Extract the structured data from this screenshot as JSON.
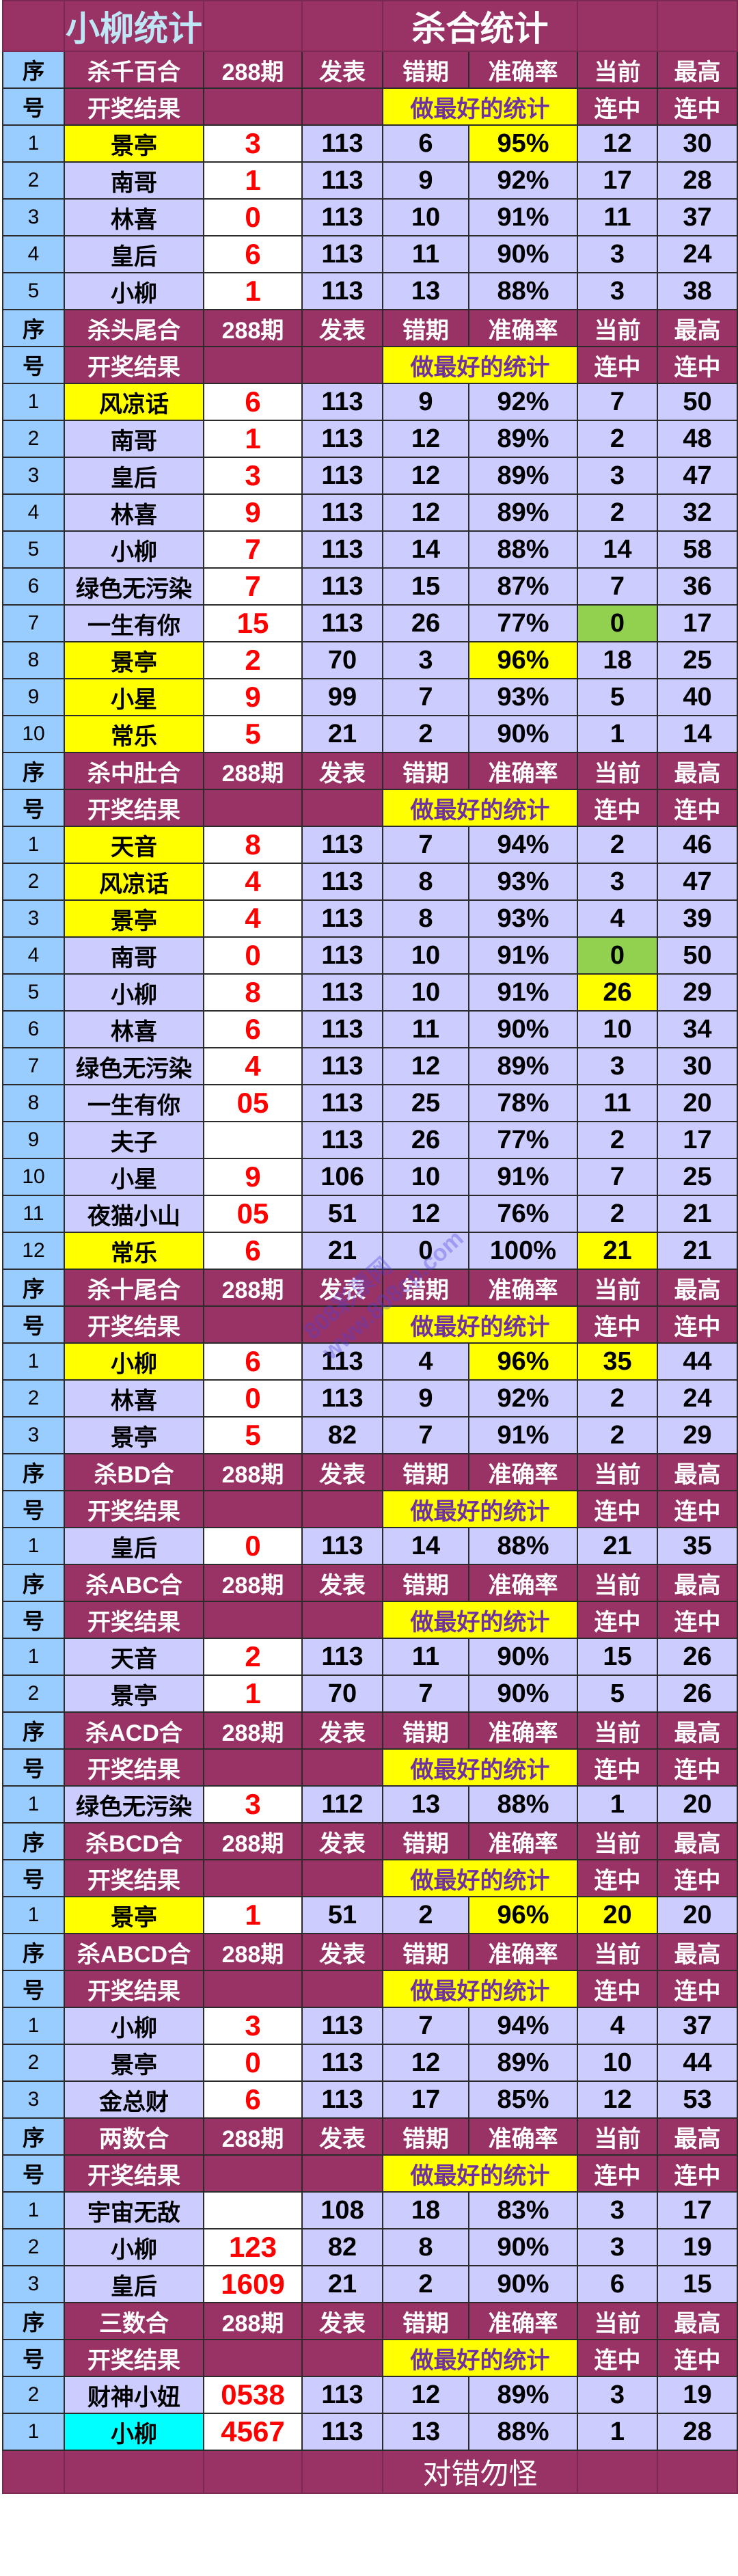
{
  "title": {
    "left": "小柳统计",
    "right": "杀合统计"
  },
  "headers": {
    "seq_top": "序",
    "seq_bottom": "号",
    "period": "288期",
    "published": "发表",
    "miss": "错期",
    "accuracy": "准确率",
    "current": "当前",
    "max": "最高",
    "result": "开奖结果",
    "best": "做最好的统计",
    "streak": "连中"
  },
  "colors": {
    "header": "#993366",
    "seq": "#99CCFF",
    "cell": "#CCCCFF",
    "highlight_yellow": "#FFFF00",
    "highlight_green": "#92D050",
    "highlight_cyan": "#00FFFF",
    "kill_text": "#FF0000",
    "best_text": "#7030A0"
  },
  "sections": [
    {
      "title": "杀千百合",
      "rows": [
        {
          "seq": "1",
          "name": "景亭",
          "kill": "3",
          "published": "113",
          "miss": "6",
          "accuracy": "95%",
          "current": "12",
          "max": "30",
          "name_hl": "yellow",
          "acc_hl": "yellow"
        },
        {
          "seq": "2",
          "name": "南哥",
          "kill": "1",
          "published": "113",
          "miss": "9",
          "accuracy": "92%",
          "current": "17",
          "max": "28"
        },
        {
          "seq": "3",
          "name": "林喜",
          "kill": "0",
          "published": "113",
          "miss": "10",
          "accuracy": "91%",
          "current": "11",
          "max": "37"
        },
        {
          "seq": "4",
          "name": "皇后",
          "kill": "6",
          "published": "113",
          "miss": "11",
          "accuracy": "90%",
          "current": "3",
          "max": "24"
        },
        {
          "seq": "5",
          "name": "小柳",
          "kill": "1",
          "published": "113",
          "miss": "13",
          "accuracy": "88%",
          "current": "3",
          "max": "38"
        }
      ]
    },
    {
      "title": "杀头尾合",
      "rows": [
        {
          "seq": "1",
          "name": "风凉话",
          "kill": "6",
          "published": "113",
          "miss": "9",
          "accuracy": "92%",
          "current": "7",
          "max": "50",
          "name_hl": "yellow"
        },
        {
          "seq": "2",
          "name": "南哥",
          "kill": "1",
          "published": "113",
          "miss": "12",
          "accuracy": "89%",
          "current": "2",
          "max": "48"
        },
        {
          "seq": "3",
          "name": "皇后",
          "kill": "3",
          "published": "113",
          "miss": "12",
          "accuracy": "89%",
          "current": "3",
          "max": "47"
        },
        {
          "seq": "4",
          "name": "林喜",
          "kill": "9",
          "published": "113",
          "miss": "12",
          "accuracy": "89%",
          "current": "2",
          "max": "32"
        },
        {
          "seq": "5",
          "name": "小柳",
          "kill": "7",
          "published": "113",
          "miss": "14",
          "accuracy": "88%",
          "current": "14",
          "max": "58"
        },
        {
          "seq": "6",
          "name": "绿色无污染",
          "kill": "7",
          "published": "113",
          "miss": "15",
          "accuracy": "87%",
          "current": "7",
          "max": "36"
        },
        {
          "seq": "7",
          "name": "一生有你",
          "kill": "15",
          "published": "113",
          "miss": "26",
          "accuracy": "77%",
          "current": "0",
          "max": "17",
          "cur_hl": "green"
        },
        {
          "seq": "8",
          "name": "景亭",
          "kill": "2",
          "published": "70",
          "miss": "3",
          "accuracy": "96%",
          "current": "18",
          "max": "25",
          "name_hl": "yellow",
          "acc_hl": "yellow"
        },
        {
          "seq": "9",
          "name": "小星",
          "kill": "9",
          "published": "99",
          "miss": "7",
          "accuracy": "93%",
          "current": "5",
          "max": "40",
          "name_hl": "yellow"
        },
        {
          "seq": "10",
          "name": "常乐",
          "kill": "5",
          "published": "21",
          "miss": "2",
          "accuracy": "90%",
          "current": "1",
          "max": "14",
          "name_hl": "yellow"
        }
      ]
    },
    {
      "title": "杀中肚合",
      "rows": [
        {
          "seq": "1",
          "name": "天音",
          "kill": "8",
          "published": "113",
          "miss": "7",
          "accuracy": "94%",
          "current": "2",
          "max": "46",
          "name_hl": "yellow"
        },
        {
          "seq": "2",
          "name": "风凉话",
          "kill": "4",
          "published": "113",
          "miss": "8",
          "accuracy": "93%",
          "current": "3",
          "max": "47",
          "name_hl": "yellow"
        },
        {
          "seq": "3",
          "name": "景亭",
          "kill": "4",
          "published": "113",
          "miss": "8",
          "accuracy": "93%",
          "current": "4",
          "max": "39",
          "name_hl": "yellow"
        },
        {
          "seq": "4",
          "name": "南哥",
          "kill": "0",
          "published": "113",
          "miss": "10",
          "accuracy": "91%",
          "current": "0",
          "max": "50",
          "cur_hl": "green"
        },
        {
          "seq": "5",
          "name": "小柳",
          "kill": "8",
          "published": "113",
          "miss": "10",
          "accuracy": "91%",
          "current": "26",
          "max": "29",
          "cur_hl": "yellow"
        },
        {
          "seq": "6",
          "name": "林喜",
          "kill": "6",
          "published": "113",
          "miss": "11",
          "accuracy": "90%",
          "current": "10",
          "max": "34"
        },
        {
          "seq": "7",
          "name": "绿色无污染",
          "kill": "4",
          "published": "113",
          "miss": "12",
          "accuracy": "89%",
          "current": "3",
          "max": "30"
        },
        {
          "seq": "8",
          "name": "一生有你",
          "kill": "05",
          "published": "113",
          "miss": "25",
          "accuracy": "78%",
          "current": "11",
          "max": "20"
        },
        {
          "seq": "9",
          "name": "夫子",
          "kill": "",
          "published": "113",
          "miss": "26",
          "accuracy": "77%",
          "current": "2",
          "max": "17"
        },
        {
          "seq": "10",
          "name": "小星",
          "kill": "9",
          "published": "106",
          "miss": "10",
          "accuracy": "91%",
          "current": "7",
          "max": "25"
        },
        {
          "seq": "11",
          "name": "夜猫小山",
          "kill": "05",
          "published": "51",
          "miss": "12",
          "accuracy": "76%",
          "current": "2",
          "max": "21"
        },
        {
          "seq": "12",
          "name": "常乐",
          "kill": "6",
          "published": "21",
          "miss": "0",
          "accuracy": "100%",
          "current": "21",
          "max": "21",
          "name_hl": "yellow",
          "cur_hl": "yellow"
        }
      ]
    },
    {
      "title": "杀十尾合",
      "rows": [
        {
          "seq": "1",
          "name": "小柳",
          "kill": "6",
          "published": "113",
          "miss": "4",
          "accuracy": "96%",
          "current": "35",
          "max": "44",
          "name_hl": "yellow",
          "acc_hl": "yellow",
          "cur_hl": "yellow"
        },
        {
          "seq": "2",
          "name": "林喜",
          "kill": "0",
          "published": "113",
          "miss": "9",
          "accuracy": "92%",
          "current": "2",
          "max": "24"
        },
        {
          "seq": "3",
          "name": "景亭",
          "kill": "5",
          "published": "82",
          "miss": "7",
          "accuracy": "91%",
          "current": "2",
          "max": "29"
        }
      ]
    },
    {
      "title": "杀BD合",
      "rows": [
        {
          "seq": "1",
          "name": "皇后",
          "kill": "0",
          "published": "113",
          "miss": "14",
          "accuracy": "88%",
          "current": "21",
          "max": "35"
        }
      ]
    },
    {
      "title": "杀ABC合",
      "rows": [
        {
          "seq": "1",
          "name": "天音",
          "kill": "2",
          "published": "113",
          "miss": "11",
          "accuracy": "90%",
          "current": "15",
          "max": "26"
        },
        {
          "seq": "2",
          "name": "景亭",
          "kill": "1",
          "published": "70",
          "miss": "7",
          "accuracy": "90%",
          "current": "5",
          "max": "26"
        }
      ]
    },
    {
      "title": "杀ACD合",
      "rows": [
        {
          "seq": "1",
          "name": "绿色无污染",
          "kill": "3",
          "published": "112",
          "miss": "13",
          "accuracy": "88%",
          "current": "1",
          "max": "20"
        }
      ]
    },
    {
      "title": "杀BCD合",
      "rows": [
        {
          "seq": "1",
          "name": "景亭",
          "kill": "1",
          "published": "51",
          "miss": "2",
          "accuracy": "96%",
          "current": "20",
          "max": "20",
          "name_hl": "yellow",
          "acc_hl": "yellow",
          "cur_hl": "yellow"
        }
      ]
    },
    {
      "title": "杀ABCD合",
      "rows": [
        {
          "seq": "1",
          "name": "小柳",
          "kill": "3",
          "published": "113",
          "miss": "7",
          "accuracy": "94%",
          "current": "4",
          "max": "37"
        },
        {
          "seq": "2",
          "name": "景亭",
          "kill": "0",
          "published": "113",
          "miss": "12",
          "accuracy": "89%",
          "current": "10",
          "max": "44"
        },
        {
          "seq": "3",
          "name": "金总财",
          "kill": "6",
          "published": "113",
          "miss": "17",
          "accuracy": "85%",
          "current": "12",
          "max": "53"
        }
      ]
    },
    {
      "title": "两数合",
      "rows": [
        {
          "seq": "1",
          "name": "宇宙无敌",
          "kill": "",
          "published": "108",
          "miss": "18",
          "accuracy": "83%",
          "current": "3",
          "max": "17"
        },
        {
          "seq": "2",
          "name": "小柳",
          "kill": "123",
          "published": "82",
          "miss": "8",
          "accuracy": "90%",
          "current": "3",
          "max": "19"
        },
        {
          "seq": "3",
          "name": "皇后",
          "kill": "1609",
          "published": "21",
          "miss": "2",
          "accuracy": "90%",
          "current": "6",
          "max": "15"
        }
      ]
    },
    {
      "title": "三数合",
      "rows": [
        {
          "seq": "2",
          "name": "财神小妞",
          "kill": "0538",
          "published": "113",
          "miss": "12",
          "accuracy": "89%",
          "current": "3",
          "max": "19"
        },
        {
          "seq": "1",
          "name": "小柳",
          "kill": "4567",
          "published": "113",
          "miss": "13",
          "accuracy": "88%",
          "current": "1",
          "max": "28",
          "name_hl": "cyan"
        }
      ]
    }
  ],
  "footer": "对错勿怪",
  "watermark": {
    "line1": "808彩票网",
    "line2": "www.808cp.com"
  }
}
